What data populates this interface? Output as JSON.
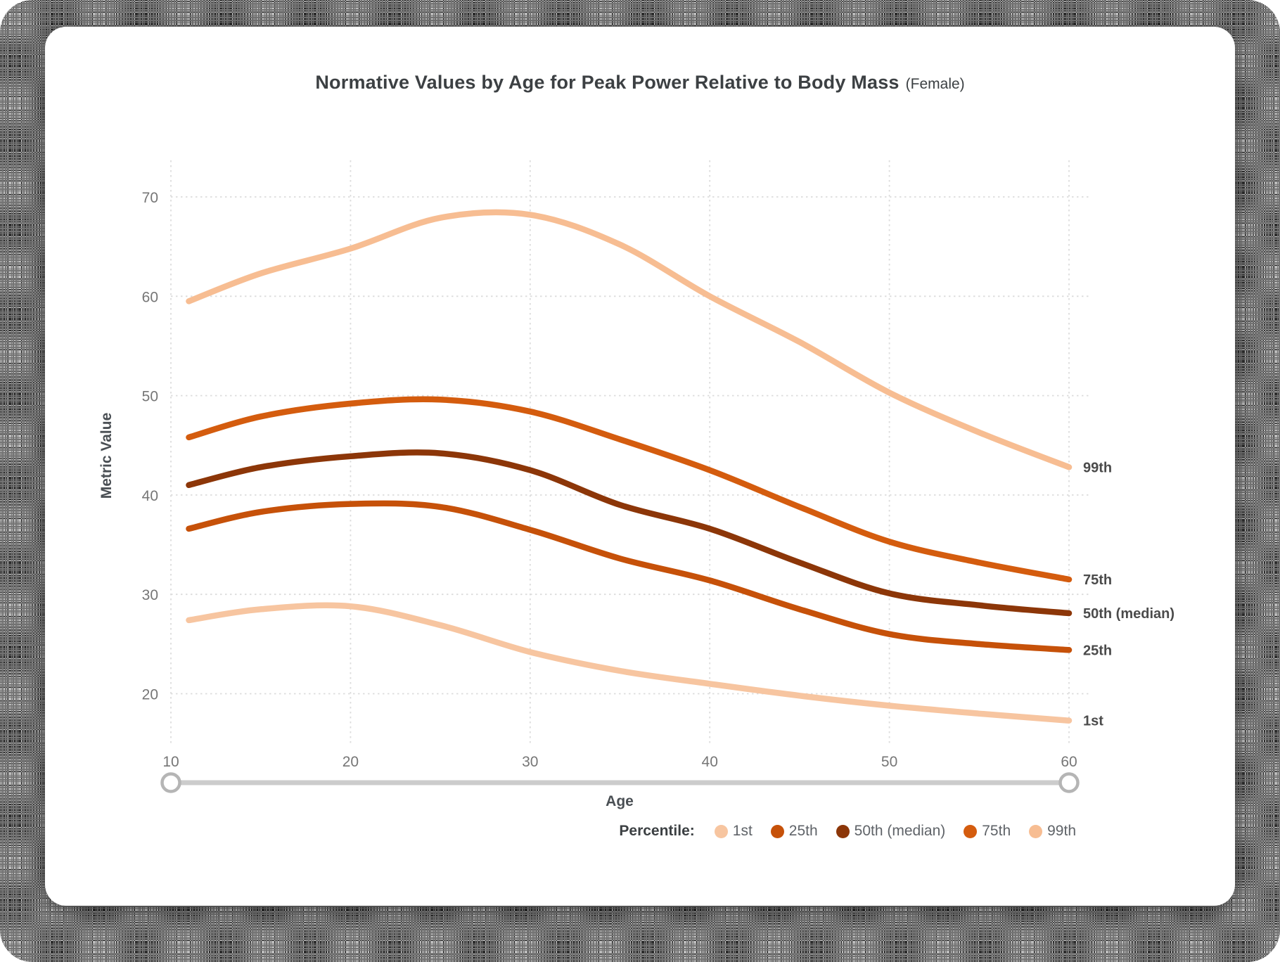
{
  "chart": {
    "title": "Normative Values by Age for Peak Power Relative to Body Mass",
    "title_suffix": "(Female)",
    "x_axis": {
      "label": "Age",
      "ticks": [
        10,
        20,
        30,
        40,
        50,
        60
      ]
    },
    "y_axis": {
      "label": "Metric Value",
      "ticks": [
        20,
        30,
        40,
        50,
        60,
        70
      ]
    },
    "legend_title": "Percentile:"
  },
  "chart_data": {
    "type": "line",
    "title": "Normative Values by Age for Peak Power Relative to Body Mass (Female)",
    "xlabel": "Age",
    "ylabel": "Metric Value",
    "xlim": [
      10,
      60
    ],
    "ylim": [
      15,
      73.5
    ],
    "grid": true,
    "legend_position": "bottom-right",
    "x": [
      11,
      15,
      20,
      25,
      30,
      35,
      40,
      45,
      50,
      55,
      60
    ],
    "series": [
      {
        "name": "1st",
        "color": "#F7C5A0",
        "values": [
          27.4,
          28.5,
          28.8,
          26.9,
          24.2,
          22.3,
          21.0,
          19.8,
          18.8,
          18.0,
          17.3
        ]
      },
      {
        "name": "25th",
        "color": "#C65109",
        "values": [
          36.6,
          38.3,
          39.1,
          38.8,
          36.5,
          33.6,
          31.4,
          28.5,
          26.0,
          25.0,
          24.4
        ]
      },
      {
        "name": "50th (median)",
        "color": "#8C3608",
        "values": [
          41.0,
          42.8,
          43.9,
          44.2,
          42.5,
          39.0,
          36.6,
          33.2,
          30.1,
          28.9,
          28.1
        ]
      },
      {
        "name": "75th",
        "color": "#D45C0E",
        "values": [
          45.8,
          47.9,
          49.2,
          49.6,
          48.4,
          45.6,
          42.5,
          38.8,
          35.3,
          33.2,
          31.5
        ]
      },
      {
        "name": "99th",
        "color": "#F7BD92",
        "values": [
          59.5,
          62.3,
          64.8,
          67.9,
          68.2,
          65.2,
          60.0,
          55.4,
          50.3,
          46.3,
          42.8
        ]
      }
    ]
  },
  "age_slider": {
    "min": 10,
    "max": 60,
    "from": 10,
    "to": 60
  },
  "colors": {
    "grid": "#dcdcdc",
    "tick_text": "#767676",
    "slider_track": "#cccccc",
    "slider_handle_border": "#b5b5b5",
    "title_text": "#3c4043"
  }
}
